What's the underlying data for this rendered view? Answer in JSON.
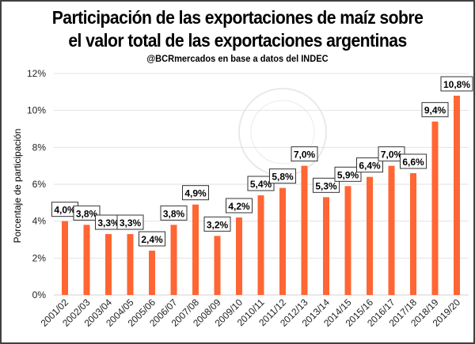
{
  "chart_data": {
    "type": "bar",
    "title": "Participación de las exportaciones de maíz sobre el valor total de las exportaciones argentinas",
    "title_lines": [
      "Participación de las exportaciones de maíz sobre",
      "el valor total de las exportaciones argentinas"
    ],
    "subtitle": "@BCRmercados  en base a datos del INDEC",
    "xlabel": "",
    "ylabel": "Porcentaje de participación",
    "ylim": [
      0,
      12
    ],
    "yticks": [
      "0%",
      "2%",
      "4%",
      "6%",
      "8%",
      "10%",
      "12%"
    ],
    "grid": true,
    "bar_color": "#FF6633",
    "categories": [
      "2001/02",
      "2002/03",
      "2003/04",
      "2004/05",
      "2005/06",
      "2006/07",
      "2007/08",
      "2008/09",
      "2009/10",
      "2010/11",
      "2011/12",
      "2012/13",
      "2013/14",
      "2014/15",
      "2015/16",
      "2016/17",
      "2017/18",
      "2018/19",
      "2019/20"
    ],
    "values": [
      4.0,
      3.8,
      3.3,
      3.3,
      2.4,
      3.8,
      4.9,
      3.2,
      4.2,
      5.4,
      5.8,
      7.0,
      5.3,
      5.9,
      6.4,
      7.0,
      6.6,
      9.4,
      10.8
    ],
    "data_labels": [
      "4,0%",
      "3,8%",
      "3,3%",
      "3,3%",
      "2,4%",
      "3,8%",
      "4,9%",
      "3,2%",
      "4,2%",
      "5,4%",
      "5,8%",
      "7,0%",
      "5,3%",
      "5,9%",
      "6,4%",
      "7,0%",
      "6,6%",
      "9,4%",
      "10,8%"
    ]
  }
}
